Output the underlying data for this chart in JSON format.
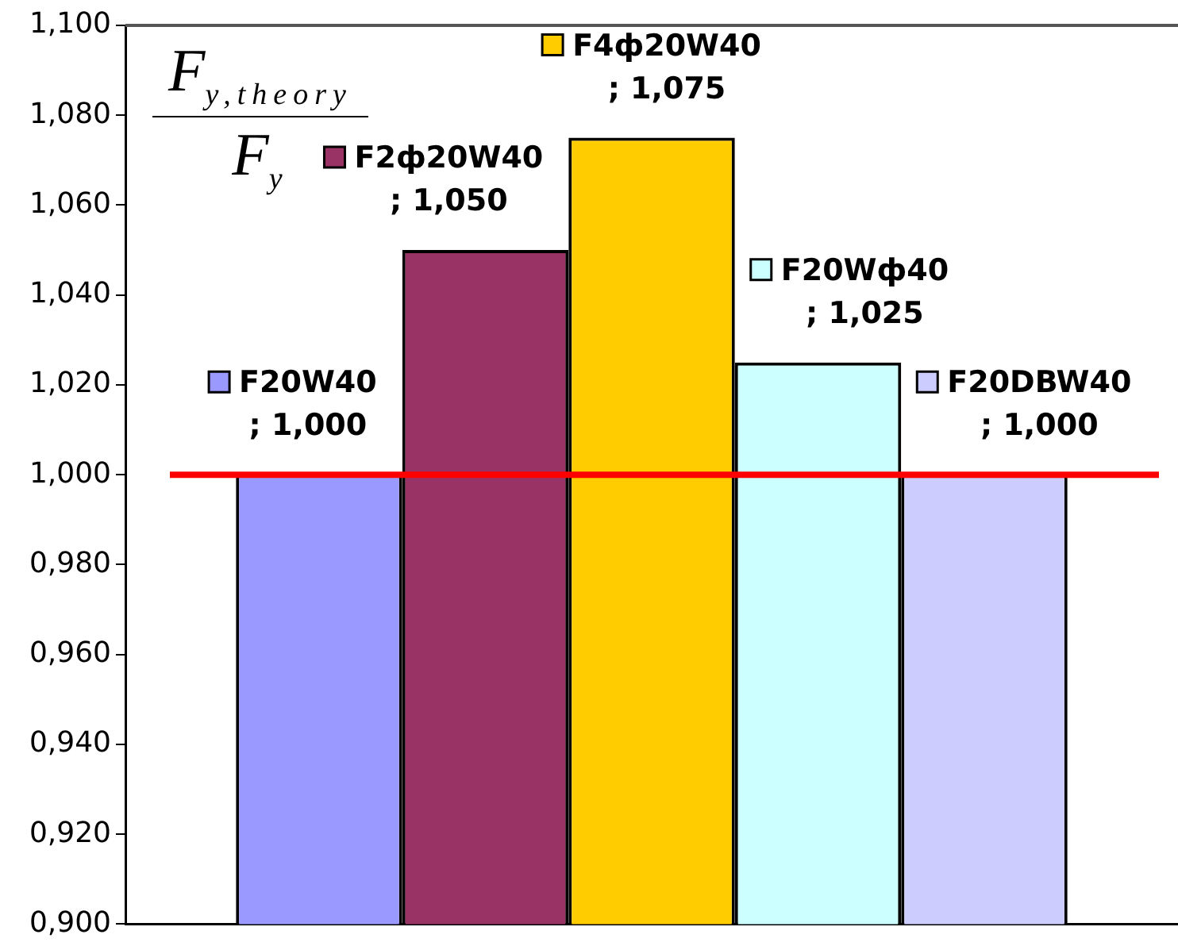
{
  "chart_data": {
    "type": "bar",
    "categories": [
      null
    ],
    "series": [
      {
        "name": "F20W40",
        "color": "#9999ff",
        "values": [
          1.0
        ],
        "value_labels": [
          "; 1,000"
        ]
      },
      {
        "name": "F2ф20W40",
        "color": "#993366",
        "values": [
          1.05
        ],
        "value_labels": [
          "; 1,050"
        ]
      },
      {
        "name": "F4ф20W40",
        "color": "#ffcc00",
        "values": [
          1.075
        ],
        "value_labels": [
          "; 1,075"
        ]
      },
      {
        "name": "F20Wф40",
        "color": "#ccffff",
        "values": [
          1.025
        ],
        "value_labels": [
          "; 1,025"
        ]
      },
      {
        "name": "F20DBW40",
        "color": "#ccccff",
        "values": [
          1.0
        ],
        "value_labels": [
          "; 1,000"
        ]
      }
    ],
    "ylabel": "F$_{y,theory}$\nF$_{y}$",
    "ylim": [
      0.9,
      1.1
    ],
    "yticks": [
      {
        "value": 0.9,
        "label": "0,900"
      },
      {
        "value": 0.92,
        "label": "0,920"
      },
      {
        "value": 0.94,
        "label": "0,940"
      },
      {
        "value": 0.96,
        "label": "0,960"
      },
      {
        "value": 0.98,
        "label": "0,980"
      },
      {
        "value": 1.0,
        "label": "1,000"
      },
      {
        "value": 1.02,
        "label": "1,020"
      },
      {
        "value": 1.04,
        "label": "1,040"
      },
      {
        "value": 1.06,
        "label": "1,060"
      },
      {
        "value": 1.08,
        "label": "1,080"
      },
      {
        "value": 1.1,
        "label": "1,100"
      }
    ],
    "ref_lines": [
      {
        "axis": "y",
        "value": 1.0,
        "color": "#ff0000"
      }
    ],
    "grid": false,
    "legend": "top",
    "tick_labels": "y"
  }
}
